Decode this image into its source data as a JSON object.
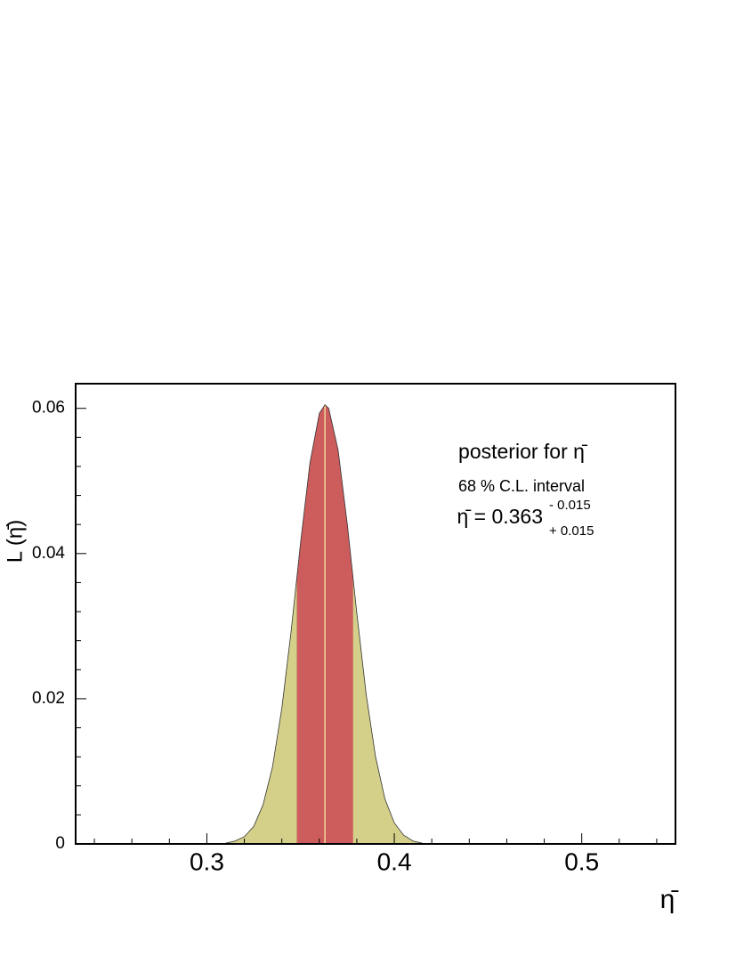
{
  "chart_data": {
    "type": "area",
    "title": "posterior for η̄",
    "annotations": [
      "68 % C.L. interval",
      "η̄ = 0.363",
      "- 0.015",
      "+ 0.015"
    ],
    "xlabel": "η̄",
    "ylabel": "L (η̄)",
    "x": [
      0.31,
      0.315,
      0.32,
      0.325,
      0.33,
      0.335,
      0.34,
      0.345,
      0.35,
      0.355,
      0.36,
      0.363,
      0.365,
      0.37,
      0.375,
      0.38,
      0.385,
      0.39,
      0.395,
      0.4,
      0.405,
      0.41,
      0.415
    ],
    "values": [
      0.0001,
      0.0004,
      0.001,
      0.0024,
      0.0054,
      0.0106,
      0.0187,
      0.0294,
      0.0415,
      0.0525,
      0.0593,
      0.0605,
      0.06,
      0.0543,
      0.0439,
      0.0318,
      0.0206,
      0.012,
      0.0062,
      0.0029,
      0.0012,
      0.0004,
      0.0001
    ],
    "color": "#d4d08a",
    "band": [
      0.348,
      0.378
    ],
    "band_color": "#cd5c5c",
    "mode": 0.363,
    "mode_color": "#f2d79a",
    "xlim": [
      0.23,
      0.55
    ],
    "ylim": [
      0,
      0.0634
    ],
    "xticks": [
      0.3,
      0.4,
      0.5
    ],
    "yticks": [
      0,
      0.02,
      0.04,
      0.06
    ],
    "xminorticks": [
      0.24,
      0.26,
      0.28,
      0.32,
      0.34,
      0.36,
      0.38,
      0.42,
      0.44,
      0.46,
      0.48,
      0.52,
      0.54
    ],
    "yminorticks": [
      0.004,
      0.008,
      0.012,
      0.016,
      0.024,
      0.028,
      0.032,
      0.036,
      0.044,
      0.048,
      0.052,
      0.056
    ]
  }
}
